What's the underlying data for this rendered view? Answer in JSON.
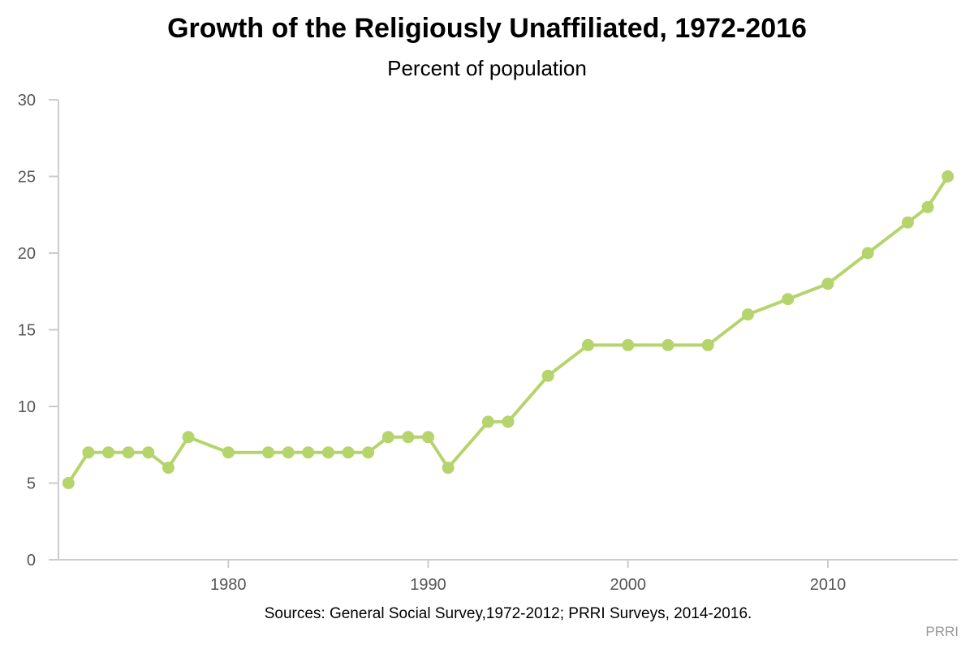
{
  "chart_data": {
    "type": "line",
    "title": "Growth of the Religiously Unaffiliated, 1972-2016",
    "subtitle": "Percent of population",
    "xlabel": "",
    "ylabel": "",
    "xlim": [
      1971.5,
      2016.5
    ],
    "ylim": [
      0,
      30
    ],
    "x_ticks": [
      1980,
      1990,
      2000,
      2010
    ],
    "y_ticks": [
      0,
      5,
      10,
      15,
      20,
      25,
      30
    ],
    "grid": false,
    "legend": "none",
    "series_color": "#b5d46c",
    "series": [
      {
        "x": [
          1972,
          1973,
          1974,
          1975,
          1976,
          1977,
          1978,
          1980,
          1982,
          1983,
          1984,
          1985,
          1986,
          1987,
          1988,
          1989,
          1990,
          1991,
          1993,
          1994,
          1996,
          1998,
          2000,
          2002,
          2004,
          2006,
          2008,
          2010,
          2012,
          2014,
          2015,
          2016
        ],
        "values": [
          5,
          7,
          7,
          7,
          7,
          6,
          8,
          7,
          7,
          7,
          7,
          7,
          7,
          7,
          8,
          8,
          8,
          6,
          9,
          9,
          12,
          14,
          14,
          14,
          14,
          16,
          17,
          18,
          20,
          22,
          23,
          25
        ]
      }
    ]
  },
  "source_note": "Sources: General Social Survey,1972-2012; PRRI Surveys, 2014-2016.",
  "credit": "PRRI"
}
